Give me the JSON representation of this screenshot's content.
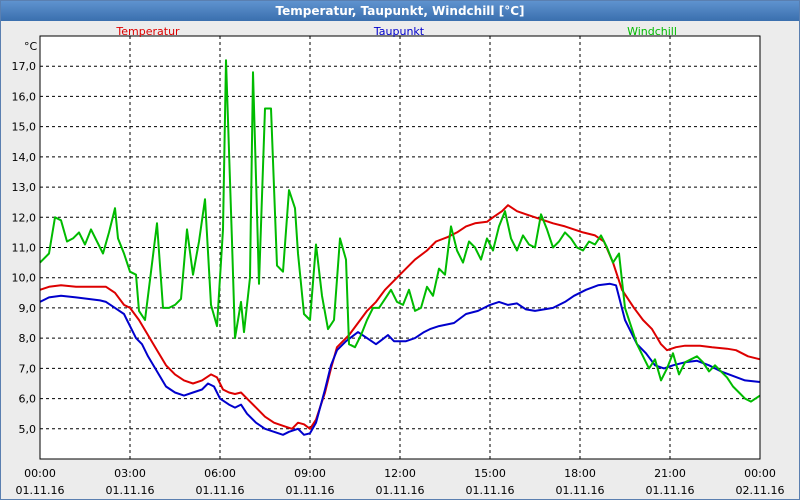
{
  "window": {
    "title": "Temperatur, Taupunkt, Windchill [°C]"
  },
  "colors": {
    "temperatur": "#dd0000",
    "taupunkt": "#0000cc",
    "windchill": "#00bb00",
    "grid": "#000000",
    "plot_bg": "#ffffff",
    "titlebar": "#4a7fbf"
  },
  "chart_data": {
    "type": "line",
    "title": "Temperatur, Taupunkt, Windchill [°C]",
    "ylabel": "°C",
    "ylim": [
      4.0,
      18.0
    ],
    "xlim": [
      0,
      24
    ],
    "grid": true,
    "legend_position": "top",
    "yticks": [
      "5,0",
      "6,0",
      "7,0",
      "8,0",
      "9,0",
      "10,0",
      "11,0",
      "12,0",
      "13,0",
      "14,0",
      "15,0",
      "16,0",
      "17,0"
    ],
    "xticks": [
      {
        "time": "00:00",
        "date": "01.11.16"
      },
      {
        "time": "03:00",
        "date": "01.11.16"
      },
      {
        "time": "06:00",
        "date": "01.11.16"
      },
      {
        "time": "09:00",
        "date": "01.11.16"
      },
      {
        "time": "12:00",
        "date": "01.11.16"
      },
      {
        "time": "15:00",
        "date": "01.11.16"
      },
      {
        "time": "18:00",
        "date": "01.11.16"
      },
      {
        "time": "21:00",
        "date": "01.11.16"
      },
      {
        "time": "00:00",
        "date": "02.11.16"
      }
    ],
    "series": [
      {
        "name": "Temperatur",
        "color": "#dd0000",
        "points": [
          [
            0,
            9.6
          ],
          [
            0.3,
            9.7
          ],
          [
            0.7,
            9.75
          ],
          [
            1.2,
            9.7
          ],
          [
            2.0,
            9.7
          ],
          [
            2.2,
            9.7
          ],
          [
            2.5,
            9.5
          ],
          [
            2.8,
            9.1
          ],
          [
            3.0,
            9.0
          ],
          [
            3.3,
            8.6
          ],
          [
            3.6,
            8.1
          ],
          [
            3.9,
            7.6
          ],
          [
            4.2,
            7.1
          ],
          [
            4.5,
            6.8
          ],
          [
            4.8,
            6.6
          ],
          [
            5.1,
            6.5
          ],
          [
            5.4,
            6.6
          ],
          [
            5.7,
            6.8
          ],
          [
            5.9,
            6.7
          ],
          [
            6.1,
            6.3
          ],
          [
            6.3,
            6.2
          ],
          [
            6.5,
            6.15
          ],
          [
            6.7,
            6.2
          ],
          [
            6.9,
            6.0
          ],
          [
            7.2,
            5.7
          ],
          [
            7.5,
            5.4
          ],
          [
            7.8,
            5.2
          ],
          [
            8.1,
            5.1
          ],
          [
            8.4,
            5.0
          ],
          [
            8.6,
            5.2
          ],
          [
            8.8,
            5.15
          ],
          [
            9.0,
            5.0
          ],
          [
            9.2,
            5.3
          ],
          [
            9.5,
            6.2
          ],
          [
            9.7,
            7.0
          ],
          [
            9.9,
            7.7
          ],
          [
            10.3,
            8.1
          ],
          [
            10.6,
            8.5
          ],
          [
            10.9,
            8.9
          ],
          [
            11.2,
            9.2
          ],
          [
            11.5,
            9.6
          ],
          [
            11.8,
            9.9
          ],
          [
            12.2,
            10.3
          ],
          [
            12.5,
            10.6
          ],
          [
            12.9,
            10.9
          ],
          [
            13.2,
            11.2
          ],
          [
            13.6,
            11.35
          ],
          [
            13.9,
            11.5
          ],
          [
            14.2,
            11.7
          ],
          [
            14.5,
            11.8
          ],
          [
            14.9,
            11.85
          ],
          [
            15.1,
            12.0
          ],
          [
            15.4,
            12.2
          ],
          [
            15.6,
            12.4
          ],
          [
            15.9,
            12.2
          ],
          [
            16.2,
            12.1
          ],
          [
            16.5,
            12.0
          ],
          [
            16.8,
            11.9
          ],
          [
            17.1,
            11.8
          ],
          [
            17.5,
            11.7
          ],
          [
            17.8,
            11.6
          ],
          [
            18.1,
            11.5
          ],
          [
            18.5,
            11.4
          ],
          [
            18.8,
            11.2
          ],
          [
            19.1,
            10.5
          ],
          [
            19.4,
            9.6
          ],
          [
            19.8,
            9.0
          ],
          [
            20.1,
            8.6
          ],
          [
            20.4,
            8.3
          ],
          [
            20.7,
            7.8
          ],
          [
            20.9,
            7.6
          ],
          [
            21.2,
            7.7
          ],
          [
            21.5,
            7.75
          ],
          [
            22.0,
            7.75
          ],
          [
            22.4,
            7.7
          ],
          [
            22.9,
            7.65
          ],
          [
            23.2,
            7.6
          ],
          [
            23.6,
            7.4
          ],
          [
            24.0,
            7.3
          ]
        ]
      },
      {
        "name": "Taupunkt",
        "color": "#0000cc",
        "points": [
          [
            0,
            9.2
          ],
          [
            0.3,
            9.35
          ],
          [
            0.7,
            9.4
          ],
          [
            1.2,
            9.35
          ],
          [
            2.0,
            9.25
          ],
          [
            2.2,
            9.2
          ],
          [
            2.5,
            9.0
          ],
          [
            2.8,
            8.8
          ],
          [
            3.0,
            8.4
          ],
          [
            3.2,
            8.0
          ],
          [
            3.4,
            7.8
          ],
          [
            3.6,
            7.4
          ],
          [
            3.9,
            6.9
          ],
          [
            4.2,
            6.4
          ],
          [
            4.5,
            6.2
          ],
          [
            4.8,
            6.1
          ],
          [
            5.1,
            6.2
          ],
          [
            5.4,
            6.3
          ],
          [
            5.6,
            6.5
          ],
          [
            5.8,
            6.4
          ],
          [
            6.0,
            6.0
          ],
          [
            6.3,
            5.8
          ],
          [
            6.5,
            5.7
          ],
          [
            6.7,
            5.8
          ],
          [
            6.9,
            5.5
          ],
          [
            7.2,
            5.2
          ],
          [
            7.5,
            5.0
          ],
          [
            7.8,
            4.9
          ],
          [
            8.1,
            4.8
          ],
          [
            8.3,
            4.9
          ],
          [
            8.6,
            5.0
          ],
          [
            8.8,
            4.8
          ],
          [
            9.0,
            4.85
          ],
          [
            9.2,
            5.2
          ],
          [
            9.5,
            6.3
          ],
          [
            9.7,
            7.1
          ],
          [
            9.9,
            7.6
          ],
          [
            10.2,
            7.9
          ],
          [
            10.6,
            8.2
          ],
          [
            10.9,
            8.0
          ],
          [
            11.2,
            7.8
          ],
          [
            11.4,
            7.95
          ],
          [
            11.6,
            8.1
          ],
          [
            11.8,
            7.9
          ],
          [
            12.2,
            7.9
          ],
          [
            12.5,
            8.0
          ],
          [
            12.8,
            8.2
          ],
          [
            13.0,
            8.3
          ],
          [
            13.3,
            8.4
          ],
          [
            13.8,
            8.5
          ],
          [
            14.2,
            8.8
          ],
          [
            14.6,
            8.9
          ],
          [
            15.0,
            9.1
          ],
          [
            15.3,
            9.2
          ],
          [
            15.6,
            9.1
          ],
          [
            15.9,
            9.15
          ],
          [
            16.2,
            8.95
          ],
          [
            16.5,
            8.9
          ],
          [
            16.8,
            8.95
          ],
          [
            17.1,
            9.0
          ],
          [
            17.5,
            9.2
          ],
          [
            17.8,
            9.4
          ],
          [
            18.2,
            9.6
          ],
          [
            18.6,
            9.75
          ],
          [
            19.0,
            9.8
          ],
          [
            19.2,
            9.75
          ],
          [
            19.5,
            8.6
          ],
          [
            19.9,
            7.8
          ],
          [
            20.2,
            7.5
          ],
          [
            20.5,
            7.1
          ],
          [
            20.8,
            7.0
          ],
          [
            21.1,
            7.1
          ],
          [
            21.5,
            7.2
          ],
          [
            21.9,
            7.25
          ],
          [
            22.3,
            7.1
          ],
          [
            22.7,
            6.9
          ],
          [
            23.1,
            6.75
          ],
          [
            23.5,
            6.6
          ],
          [
            24.0,
            6.55
          ]
        ]
      },
      {
        "name": "Windchill",
        "color": "#00bb00",
        "points": [
          [
            0,
            10.5
          ],
          [
            0.3,
            10.8
          ],
          [
            0.5,
            12.0
          ],
          [
            0.7,
            11.9
          ],
          [
            0.9,
            11.2
          ],
          [
            1.1,
            11.3
          ],
          [
            1.3,
            11.5
          ],
          [
            1.5,
            11.1
          ],
          [
            1.7,
            11.6
          ],
          [
            1.9,
            11.2
          ],
          [
            2.1,
            10.8
          ],
          [
            2.3,
            11.5
          ],
          [
            2.5,
            12.3
          ],
          [
            2.6,
            11.3
          ],
          [
            2.8,
            10.8
          ],
          [
            3.0,
            10.2
          ],
          [
            3.2,
            10.1
          ],
          [
            3.3,
            8.9
          ],
          [
            3.5,
            8.6
          ],
          [
            3.7,
            10.2
          ],
          [
            3.9,
            11.8
          ],
          [
            4.1,
            9.0
          ],
          [
            4.3,
            9.0
          ],
          [
            4.5,
            9.1
          ],
          [
            4.7,
            9.3
          ],
          [
            4.9,
            11.6
          ],
          [
            5.1,
            10.1
          ],
          [
            5.3,
            11.2
          ],
          [
            5.5,
            12.6
          ],
          [
            5.7,
            9.1
          ],
          [
            5.9,
            8.4
          ],
          [
            6.1,
            11.6
          ],
          [
            6.2,
            17.2
          ],
          [
            6.4,
            11.2
          ],
          [
            6.5,
            8.0
          ],
          [
            6.7,
            9.2
          ],
          [
            6.8,
            8.2
          ],
          [
            7.0,
            10.0
          ],
          [
            7.1,
            16.8
          ],
          [
            7.3,
            9.8
          ],
          [
            7.5,
            15.6
          ],
          [
            7.7,
            15.6
          ],
          [
            7.9,
            10.4
          ],
          [
            8.1,
            10.2
          ],
          [
            8.3,
            12.9
          ],
          [
            8.5,
            12.3
          ],
          [
            8.6,
            10.8
          ],
          [
            8.8,
            8.8
          ],
          [
            9.0,
            8.6
          ],
          [
            9.2,
            11.1
          ],
          [
            9.4,
            9.4
          ],
          [
            9.6,
            8.3
          ],
          [
            9.8,
            8.6
          ],
          [
            10.0,
            11.3
          ],
          [
            10.2,
            10.6
          ],
          [
            10.3,
            7.8
          ],
          [
            10.5,
            7.7
          ],
          [
            10.7,
            8.1
          ],
          [
            10.9,
            8.6
          ],
          [
            11.1,
            9.0
          ],
          [
            11.3,
            9.0
          ],
          [
            11.5,
            9.3
          ],
          [
            11.7,
            9.6
          ],
          [
            11.9,
            9.2
          ],
          [
            12.1,
            9.1
          ],
          [
            12.3,
            9.6
          ],
          [
            12.5,
            8.9
          ],
          [
            12.7,
            9.0
          ],
          [
            12.9,
            9.7
          ],
          [
            13.1,
            9.4
          ],
          [
            13.3,
            10.3
          ],
          [
            13.5,
            10.1
          ],
          [
            13.7,
            11.7
          ],
          [
            13.9,
            10.9
          ],
          [
            14.1,
            10.5
          ],
          [
            14.3,
            11.2
          ],
          [
            14.5,
            11.0
          ],
          [
            14.7,
            10.6
          ],
          [
            14.9,
            11.3
          ],
          [
            15.1,
            10.9
          ],
          [
            15.3,
            11.7
          ],
          [
            15.5,
            12.2
          ],
          [
            15.7,
            11.3
          ],
          [
            15.9,
            10.9
          ],
          [
            16.1,
            11.4
          ],
          [
            16.3,
            11.1
          ],
          [
            16.5,
            11.0
          ],
          [
            16.7,
            12.1
          ],
          [
            16.9,
            11.6
          ],
          [
            17.1,
            11.0
          ],
          [
            17.3,
            11.2
          ],
          [
            17.5,
            11.5
          ],
          [
            17.7,
            11.3
          ],
          [
            17.9,
            11.0
          ],
          [
            18.1,
            10.9
          ],
          [
            18.3,
            11.2
          ],
          [
            18.5,
            11.1
          ],
          [
            18.7,
            11.4
          ],
          [
            18.9,
            11.0
          ],
          [
            19.1,
            10.5
          ],
          [
            19.3,
            10.8
          ],
          [
            19.5,
            9.0
          ],
          [
            19.7,
            8.4
          ],
          [
            19.9,
            7.8
          ],
          [
            20.1,
            7.4
          ],
          [
            20.3,
            7.0
          ],
          [
            20.5,
            7.3
          ],
          [
            20.7,
            6.6
          ],
          [
            20.9,
            7.0
          ],
          [
            21.1,
            7.5
          ],
          [
            21.3,
            6.8
          ],
          [
            21.5,
            7.2
          ],
          [
            21.7,
            7.3
          ],
          [
            21.9,
            7.4
          ],
          [
            22.1,
            7.2
          ],
          [
            22.3,
            6.9
          ],
          [
            22.5,
            7.1
          ],
          [
            22.7,
            6.9
          ],
          [
            22.9,
            6.7
          ],
          [
            23.1,
            6.4
          ],
          [
            23.3,
            6.2
          ],
          [
            23.5,
            6.0
          ],
          [
            23.7,
            5.9
          ],
          [
            24.0,
            6.1
          ]
        ]
      }
    ]
  }
}
